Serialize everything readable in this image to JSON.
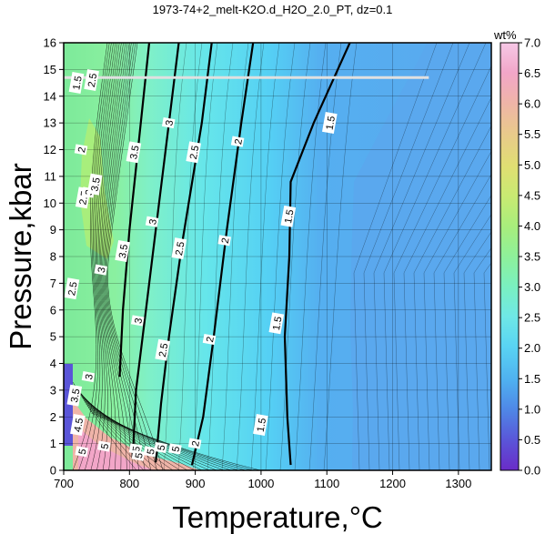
{
  "chart_data": {
    "type": "heatmap",
    "title": "1973-74+2_melt-K2O.d_H2O_2.0_PT, dz=0.1",
    "xlabel": "Temperature,°C",
    "ylabel": "Pressure,kbar",
    "xlim": [
      700,
      1350
    ],
    "ylim": [
      0,
      16
    ],
    "x_ticks": [
      "700",
      "800",
      "900",
      "1000",
      "1100",
      "1200",
      "1300"
    ],
    "y_ticks": [
      "0",
      "1",
      "2",
      "3",
      "4",
      "5",
      "6",
      "7",
      "8",
      "9",
      "10",
      "11",
      "12",
      "13",
      "14",
      "15",
      "16"
    ],
    "grid": true,
    "colorbar": {
      "label": "wt%",
      "range": [
        0,
        7
      ],
      "ticks": [
        "0.0",
        "0.5",
        "1.0",
        "1.5",
        "2.0",
        "2.5",
        "3.0",
        "3.5",
        "4.0",
        "4.5",
        "5.0",
        "5.5",
        "6.0",
        "6.5",
        "7.0"
      ],
      "colors": [
        "#6a2cc8",
        "#5a55d8",
        "#4f86e6",
        "#4fb0f0",
        "#59d4f3",
        "#6fe8e6",
        "#7af0c0",
        "#8ef09a",
        "#a8ee7c",
        "#c8ea72",
        "#e0df72",
        "#e9c98c",
        "#efb4a8",
        "#f2a6c8",
        "#f6c8e6"
      ]
    },
    "horizontal_line": {
      "y": 14.7,
      "x_range": [
        700,
        1255
      ],
      "color": "#e0e0e0"
    },
    "major_contours": [
      {
        "level": "1.5",
        "points": [
          [
            1045,
            0.2
          ],
          [
            1040,
            2
          ],
          [
            1036,
            5
          ],
          [
            1043,
            8
          ],
          [
            1045,
            10.8
          ],
          [
            1080,
            13
          ],
          [
            1135,
            16
          ]
        ]
      },
      {
        "level": "2",
        "points": [
          [
            895,
            0.2
          ],
          [
            912,
            2
          ],
          [
            928,
            5
          ],
          [
            948,
            9
          ],
          [
            970,
            13
          ],
          [
            988,
            16
          ]
        ]
      },
      {
        "level": "2.5",
        "points": [
          [
            840,
            0.3
          ],
          [
            848,
            2.5
          ],
          [
            860,
            5
          ],
          [
            880,
            8.5
          ],
          [
            910,
            13
          ],
          [
            925,
            16
          ]
        ]
      },
      {
        "level": "3",
        "points": [
          [
            805,
            0.5
          ],
          [
            810,
            3
          ],
          [
            825,
            6
          ],
          [
            840,
            9
          ],
          [
            860,
            13
          ],
          [
            875,
            16
          ]
        ]
      },
      {
        "level": "3.5",
        "points": [
          [
            785,
            3.5
          ],
          [
            790,
            6
          ],
          [
            800,
            9
          ],
          [
            815,
            12.5
          ],
          [
            830,
            16
          ]
        ]
      }
    ],
    "contour_labels": [
      {
        "text": "1.5",
        "x": 1105,
        "y": 13
      },
      {
        "text": "1.5",
        "x": 1042,
        "y": 9.5
      },
      {
        "text": "1.5",
        "x": 1024,
        "y": 5.5
      },
      {
        "text": "1.5",
        "x": 1000,
        "y": 1.7
      },
      {
        "text": "2",
        "x": 965,
        "y": 12.3
      },
      {
        "text": "2",
        "x": 945,
        "y": 8.6
      },
      {
        "text": "2",
        "x": 922,
        "y": 4.9
      },
      {
        "text": "2",
        "x": 900,
        "y": 1
      },
      {
        "text": "2.5",
        "x": 898,
        "y": 11.9
      },
      {
        "text": "2.5",
        "x": 876,
        "y": 8.3
      },
      {
        "text": "2.5",
        "x": 851,
        "y": 4.5
      },
      {
        "text": "3",
        "x": 860,
        "y": 13
      },
      {
        "text": "3",
        "x": 835,
        "y": 9.3
      },
      {
        "text": "3",
        "x": 813,
        "y": 5.6
      },
      {
        "text": "3.5",
        "x": 807,
        "y": 11.9
      },
      {
        "text": "3.5",
        "x": 790,
        "y": 8.2
      },
      {
        "text": "3",
        "x": 757,
        "y": 7.5
      },
      {
        "text": "3",
        "x": 738,
        "y": 3.5
      },
      {
        "text": "2.5",
        "x": 713,
        "y": 6.8
      },
      {
        "text": "2.5",
        "x": 730,
        "y": 10.2
      },
      {
        "text": "3",
        "x": 738,
        "y": 10.4
      },
      {
        "text": "3.5",
        "x": 748,
        "y": 10.7
      },
      {
        "text": "2",
        "x": 727,
        "y": 12
      },
      {
        "text": "1.5",
        "x": 720,
        "y": 14.5
      },
      {
        "text": "2.5",
        "x": 743,
        "y": 14.6
      },
      {
        "text": "3.5",
        "x": 717,
        "y": 2.8
      },
      {
        "text": "4.5",
        "x": 722,
        "y": 1.7
      },
      {
        "text": "5",
        "x": 728,
        "y": 0.7
      },
      {
        "text": "5",
        "x": 762,
        "y": 0.9
      },
      {
        "text": "5",
        "x": 810,
        "y": 0.8
      },
      {
        "text": "5",
        "x": 848,
        "y": 0.85
      },
      {
        "text": "5",
        "x": 832,
        "y": 0.7
      },
      {
        "text": "5",
        "x": 814,
        "y": 0.55
      },
      {
        "text": "5",
        "x": 870,
        "y": 0.8
      }
    ]
  }
}
